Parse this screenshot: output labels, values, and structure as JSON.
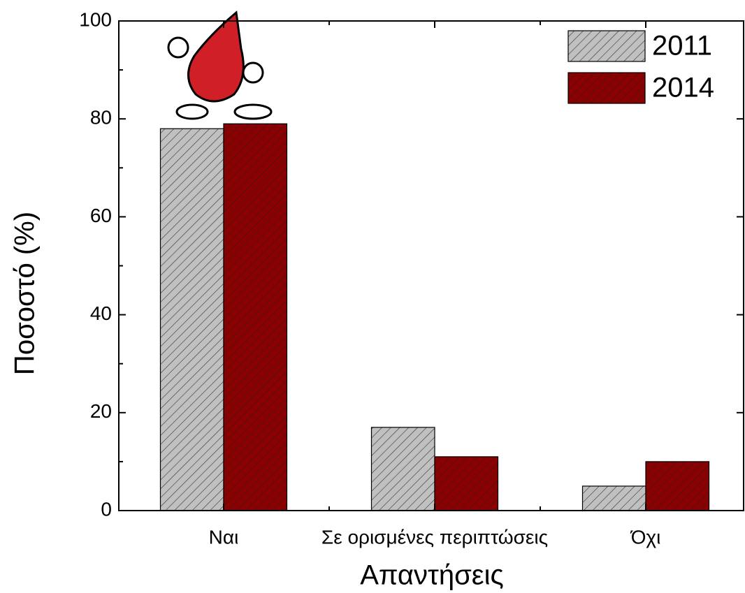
{
  "chart_data": {
    "type": "bar",
    "x_label": "Απαντήσεις",
    "y_label": "Ποσοστό  (%)",
    "categories": [
      "Ναι",
      "Σε ορισμένες περιπτώσεις",
      "Όχι"
    ],
    "series": [
      {
        "name": "2011",
        "color": "#c0c0c0",
        "values": [
          78,
          17,
          5
        ]
      },
      {
        "name": "2014",
        "color": "#8b0000",
        "values": [
          79,
          11,
          10
        ]
      }
    ],
    "ylim": [
      0,
      100
    ],
    "yticks": [
      0,
      20,
      40,
      60,
      80,
      100
    ],
    "legend": "upper right"
  }
}
